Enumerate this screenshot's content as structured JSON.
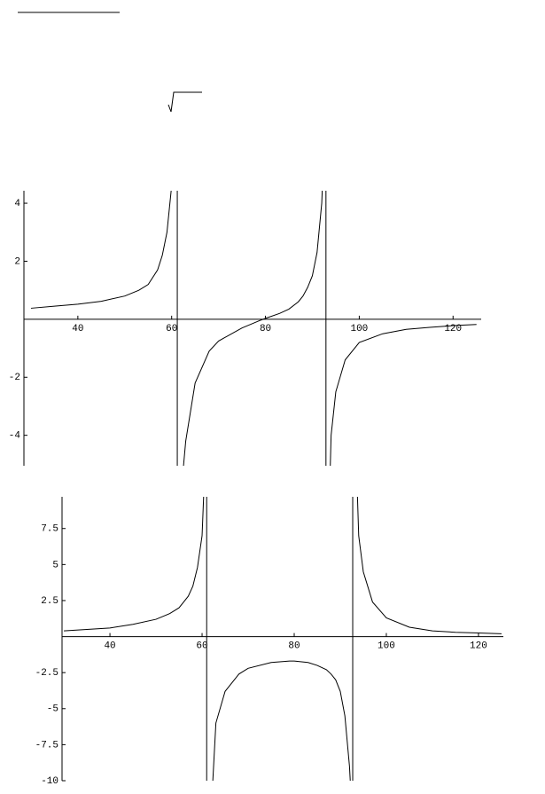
{
  "chart_data": [
    {
      "type": "line",
      "color": "#000000",
      "x": [
        30,
        35,
        40,
        45,
        50,
        53,
        55,
        57,
        58,
        59,
        60,
        60.5,
        61,
        62,
        63,
        65,
        68,
        70,
        75,
        79,
        80,
        83,
        85,
        87,
        88,
        89,
        90,
        91,
        92,
        92.5,
        93,
        93.5,
        94,
        95,
        97,
        100,
        105,
        110,
        115,
        120,
        125
      ],
      "series": [
        {
          "color": "#000000",
          "values": [
            0.38,
            0.45,
            0.52,
            0.62,
            0.8,
            1.0,
            1.2,
            1.7,
            2.2,
            3.0,
            4.6,
            7,
            null,
            -6,
            -4.2,
            -2.2,
            -1.1,
            -0.75,
            -0.3,
            -0.03,
            0.03,
            0.2,
            0.35,
            0.6,
            0.8,
            1.1,
            1.5,
            2.3,
            4,
            6,
            null,
            -7,
            -4,
            -2.5,
            -1.4,
            -0.8,
            -0.5,
            -0.35,
            -0.28,
            -0.22,
            -0.18
          ]
        }
      ],
      "asymptotes": [
        61.2,
        92.9
      ],
      "xlim": [
        28.5,
        126
      ],
      "ylim": [
        -5.05,
        4.43
      ],
      "xticks": [
        40,
        60,
        80,
        100,
        120
      ],
      "yticks": [
        -4,
        -2,
        2,
        4
      ]
    },
    {
      "type": "line",
      "color": "#000000",
      "x": [
        30,
        35,
        40,
        45,
        50,
        53,
        55,
        57,
        58,
        59,
        60,
        60.5,
        61,
        62,
        63,
        65,
        68,
        70,
        75,
        79,
        80,
        83,
        85,
        87,
        88,
        89,
        90,
        91,
        92,
        92.5,
        93,
        93.5,
        94,
        95,
        97,
        100,
        105,
        110,
        115,
        120,
        125
      ],
      "series": [
        {
          "color": "#000000",
          "values": [
            0.4,
            0.5,
            0.6,
            0.85,
            1.2,
            1.6,
            2.0,
            2.8,
            3.5,
            4.8,
            7,
            11,
            null,
            -12,
            -6,
            -3.8,
            -2.6,
            -2.2,
            -1.8,
            -1.7,
            -1.7,
            -1.8,
            -2.0,
            -2.3,
            -2.6,
            -3,
            -3.8,
            -5.5,
            -9,
            -12,
            null,
            12,
            7,
            4.5,
            2.4,
            1.3,
            0.65,
            0.4,
            0.3,
            0.25,
            0.2
          ]
        }
      ],
      "asymptotes": [
        61.0,
        92.7
      ],
      "xlim": [
        29.6,
        125.4
      ],
      "ylim": [
        -10,
        9.7
      ],
      "xticks": [
        40,
        60,
        80,
        100,
        120
      ],
      "yticks": [
        -10,
        -7.5,
        -5,
        -2.5,
        2.5,
        5,
        7.5
      ]
    }
  ]
}
